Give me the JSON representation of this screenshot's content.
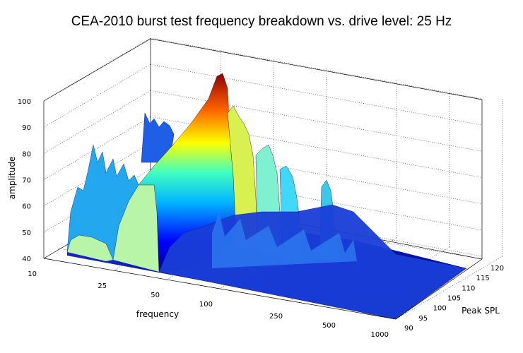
{
  "chart_data": {
    "type": "area",
    "title": "CEA-2010 burst test frequency breakdown vs. drive level: 25 Hz",
    "xlabel": "frequency",
    "ylabel": "Peak SPL",
    "zlabel": "amplitude",
    "x_scale": "log",
    "x_ticks": [
      "10",
      "25",
      "50",
      "100",
      "250",
      "500",
      "1000"
    ],
    "y_ticks": [
      "90",
      "95",
      "100",
      "105",
      "110",
      "115",
      "120"
    ],
    "z_ticks": [
      "40",
      "50",
      "60",
      "70",
      "80",
      "90",
      "100"
    ],
    "zlim": [
      40,
      100
    ],
    "ylim": [
      90,
      120
    ],
    "xlim": [
      10,
      1000
    ],
    "grid": true,
    "colormap": "jet",
    "description_peak": {
      "frequency": 25,
      "peak_spl_max": 120,
      "amplitude_max": 100
    },
    "ridges": [
      {
        "frequency": 25,
        "amplitude_range": [
          62,
          100
        ]
      },
      {
        "frequency": 50,
        "amplitude_range": [
          45,
          90
        ]
      },
      {
        "frequency": 75,
        "amplitude_range": [
          45,
          80
        ]
      },
      {
        "frequency": 125,
        "amplitude_range": [
          45,
          68
        ]
      }
    ]
  }
}
